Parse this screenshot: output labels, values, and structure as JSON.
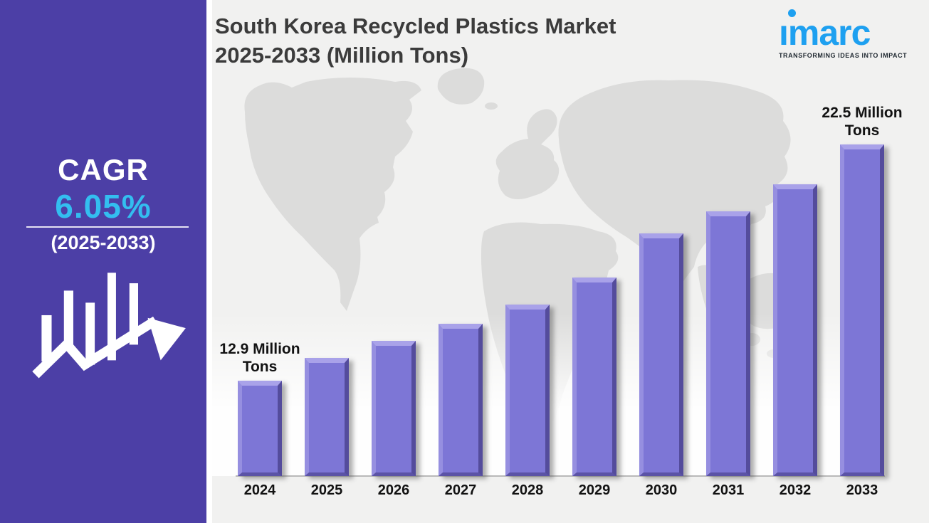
{
  "sidebar": {
    "cagr_label": "CAGR",
    "cagr_value": "6.05%",
    "cagr_period": "(2025-2033)",
    "background_color": "#4C3FA6",
    "accent_color": "#33BEF0"
  },
  "header": {
    "title_line1": "South Korea Recycled Plastics Market",
    "title_line2": "2025-2033 (Million Tons)",
    "text_color": "#3B3B3B"
  },
  "logo": {
    "brand": "imarc",
    "brand_display": "ımarc",
    "tagline": "TRANSFORMING IDEAS INTO IMPACT",
    "brand_color": "#1EA0F0"
  },
  "chart_data": {
    "type": "bar",
    "title": "South Korea Recycled Plastics Market 2025-2033 (Million Tons)",
    "unit": "Million Tons",
    "categories": [
      "2024",
      "2025",
      "2026",
      "2027",
      "2028",
      "2029",
      "2030",
      "2031",
      "2032",
      "2033"
    ],
    "values": [
      12.9,
      13.8,
      14.5,
      15.2,
      16.0,
      17.1,
      18.9,
      19.8,
      20.9,
      22.5
    ],
    "annotations": [
      {
        "category": "2024",
        "text": "12.9 Million\nTons"
      },
      {
        "category": "2033",
        "text": "22.5 Million\nTons"
      }
    ],
    "bar_color": "#7D76D6",
    "ylim": [
      9,
      23.5
    ],
    "xlabel": "",
    "ylabel": "",
    "grid": false,
    "legend": false,
    "background": "world-map-silhouette"
  }
}
